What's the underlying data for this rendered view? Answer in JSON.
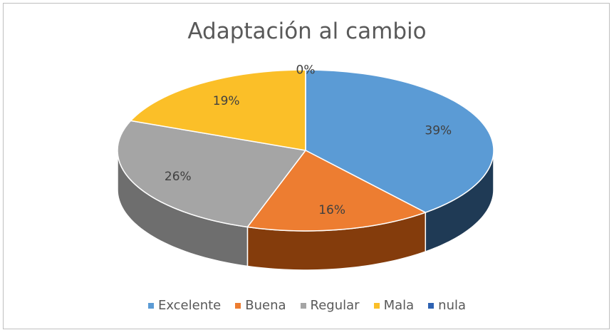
{
  "chart_data": {
    "type": "pie",
    "title": "Adaptación al cambio",
    "legend_position": "bottom",
    "slices": [
      {
        "label": "Excelente",
        "value": 39,
        "display": "39%",
        "color": "#5b9bd5",
        "side_color": "#1f3a55"
      },
      {
        "label": "Buena",
        "value": 16,
        "display": "16%",
        "color": "#ed7d31",
        "side_color": "#843c0c"
      },
      {
        "label": "Regular",
        "value": 26,
        "display": "26%",
        "color": "#a5a5a5",
        "side_color": "#6e6e6e"
      },
      {
        "label": "Mala",
        "value": 19,
        "display": "19%",
        "color": "#fbbf28",
        "side_color": "#9a7400"
      },
      {
        "label": "nula",
        "value": 0,
        "display": "0%",
        "color": "#2e62b2",
        "side_color": "#1c3c6d"
      }
    ]
  }
}
